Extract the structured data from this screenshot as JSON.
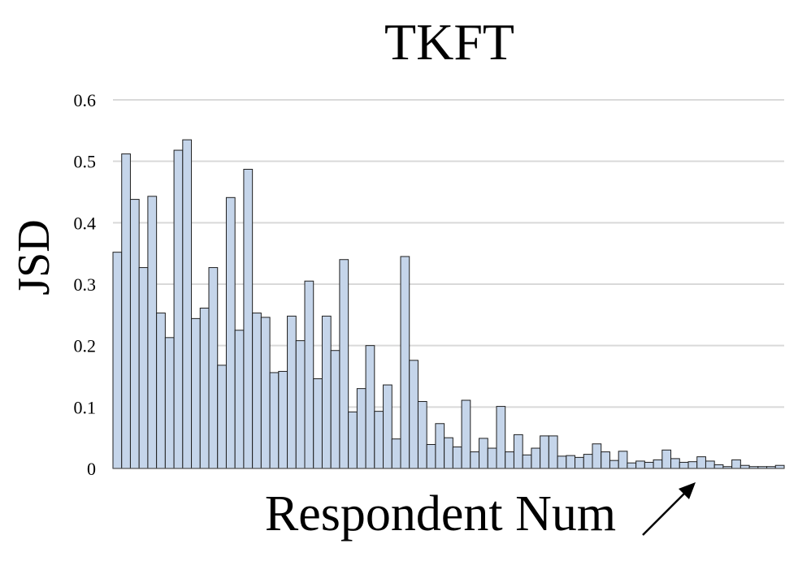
{
  "chart_data": {
    "type": "bar",
    "title": "TKFT",
    "ylabel": "JSD",
    "xlabel": "Respondent Num",
    "ylim": [
      0,
      0.6
    ],
    "yticks": [
      "0",
      "0.1",
      "0.2",
      "0.3",
      "0.4",
      "0.5",
      "0.6"
    ],
    "grid": true,
    "bar_color": "#c5d5ea",
    "bar_edge_color": "#1f1f1f",
    "arrow": "up-right arrow next to x-axis label",
    "values": [
      0.352,
      0.512,
      0.438,
      0.327,
      0.443,
      0.253,
      0.213,
      0.518,
      0.535,
      0.244,
      0.261,
      0.327,
      0.168,
      0.441,
      0.225,
      0.487,
      0.253,
      0.246,
      0.156,
      0.158,
      0.248,
      0.208,
      0.305,
      0.146,
      0.248,
      0.192,
      0.34,
      0.092,
      0.13,
      0.2,
      0.093,
      0.136,
      0.048,
      0.345,
      0.176,
      0.109,
      0.039,
      0.073,
      0.05,
      0.035,
      0.111,
      0.027,
      0.049,
      0.033,
      0.101,
      0.027,
      0.055,
      0.022,
      0.033,
      0.053,
      0.053,
      0.02,
      0.021,
      0.018,
      0.023,
      0.04,
      0.027,
      0.013,
      0.028,
      0.009,
      0.012,
      0.01,
      0.014,
      0.03,
      0.016,
      0.01,
      0.011,
      0.019,
      0.012,
      0.006,
      0.003,
      0.014,
      0.005,
      0.003,
      0.003,
      0.003,
      0.005
    ]
  }
}
